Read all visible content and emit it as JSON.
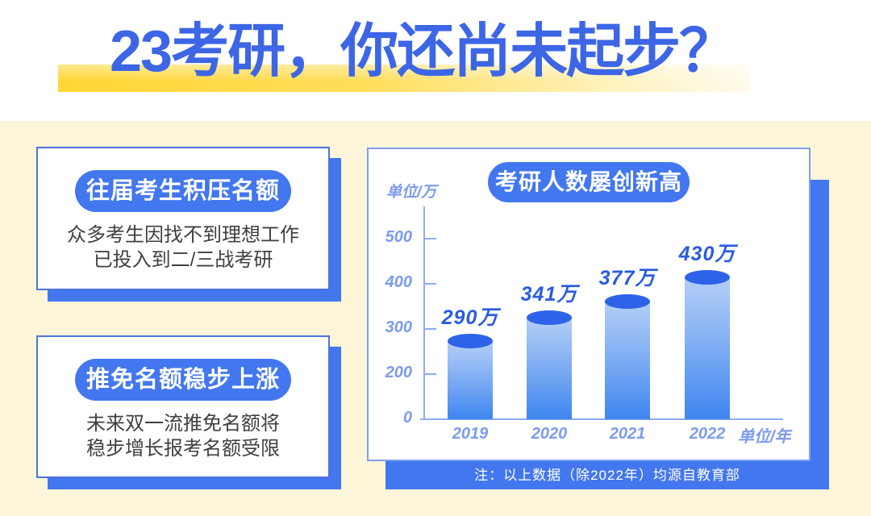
{
  "title": {
    "text": "23考研，你还尚未起步？"
  },
  "cards": [
    {
      "heading": "往届考生积压名额",
      "line1": "众多考生因找不到理想工作",
      "line2": "已投入到二/三战考研"
    },
    {
      "heading": "推免名额稳步上涨",
      "line1": "未来双一流推免名额将",
      "line2": "稳步增长报考名额受限"
    }
  ],
  "chart_data": {
    "type": "bar",
    "title": "考研人数屡创新高",
    "categories": [
      "2019",
      "2020",
      "2021",
      "2022"
    ],
    "values": [
      290,
      341,
      377,
      430
    ],
    "value_labels": [
      "290万",
      "341万",
      "377万",
      "430万"
    ],
    "ylabel": "单位/万",
    "xlabel": "单位/年",
    "yticks": [
      0,
      200,
      300,
      400,
      500
    ],
    "ylim": [
      0,
      500
    ],
    "grid": false,
    "legend": "none",
    "note": "注：以上数据（除2022年）均源自教育部"
  },
  "colors": {
    "accent": "#4377EF",
    "title_blue": "#3C66E5",
    "card_border": "#4C72DE",
    "chart_border": "#7D9FF2",
    "axis_blue": "#7B9BEF",
    "axis_line": "#8FABF2",
    "value_blue": "#2B5BE2",
    "bar_cap": "#2D63E8",
    "bar_top": "#B3CEF6",
    "bar_bottom": "#3E86F0",
    "bg_yellow": "#FCF5DA",
    "highlight_yellow": "#FFD634",
    "text_dark": "#3F3F3F"
  }
}
